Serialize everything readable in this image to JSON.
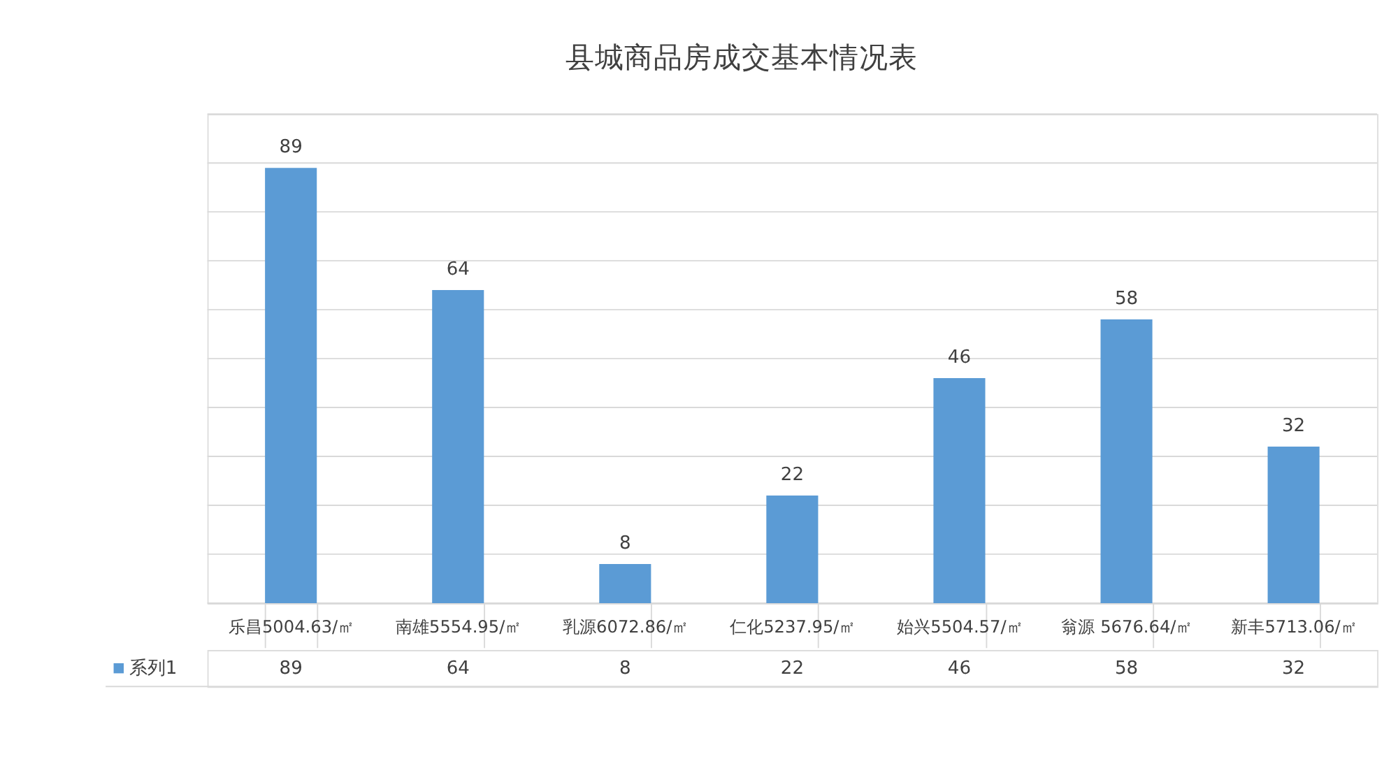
{
  "chart_data": {
    "type": "bar",
    "title": "县城商品房成交基本情况表",
    "categories": [
      "乐昌5004.63/㎡",
      "南雄5554.95/㎡",
      "乳源6072.86/㎡",
      "仁化5237.95/㎡",
      "始兴5504.57/㎡",
      "翁源 5676.64/㎡",
      "新丰5713.06/㎡"
    ],
    "series": [
      {
        "name": "系列1",
        "color": "#5b9bd5",
        "values": [
          89,
          64,
          8,
          22,
          46,
          58,
          32
        ],
        "value_labels": [
          "89",
          "64",
          "8",
          "22",
          "46",
          "58",
          "32"
        ]
      }
    ],
    "ylim": [
      0,
      100
    ],
    "yticks": [
      {
        "value": 0,
        "label": null
      },
      {
        "value": 10,
        "label": null
      },
      {
        "value": 20,
        "label": null
      },
      {
        "value": 30,
        "label": null
      },
      {
        "value": 40,
        "label": null
      },
      {
        "value": 50,
        "label": null
      },
      {
        "value": 60,
        "label": null
      },
      {
        "value": 70,
        "label": null
      },
      {
        "value": 80,
        "label": null
      },
      {
        "value": 90,
        "label": null
      },
      {
        "value": 100,
        "label": null
      }
    ],
    "annotations": [
      "89",
      "64",
      "8",
      "22",
      "46",
      "58",
      "32"
    ],
    "grid": "y",
    "tick_labels": "x",
    "legend": "bottom"
  }
}
